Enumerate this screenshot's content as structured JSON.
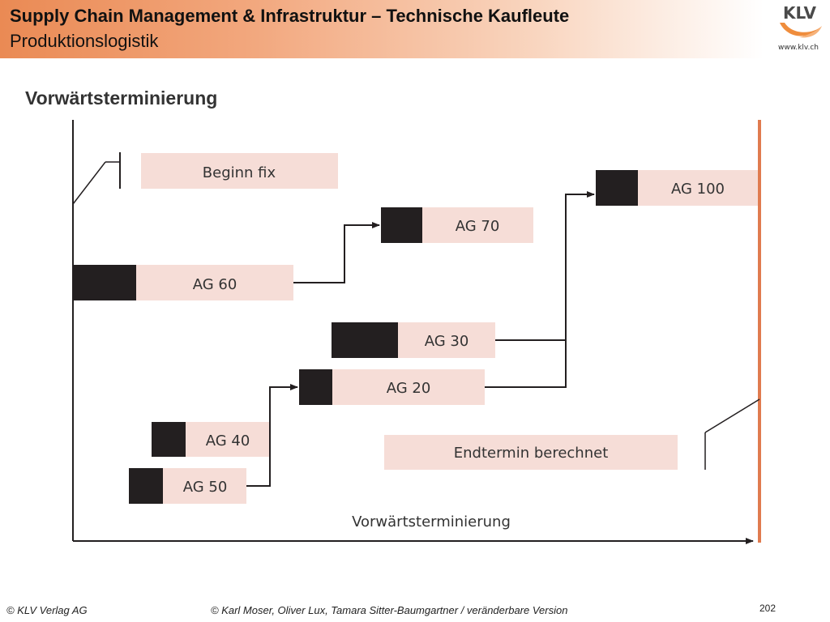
{
  "header": {
    "title": "Supply Chain Management & Infrastruktur – Technische Kaufleute",
    "subtitle": "Produktionslogistik",
    "logo_text": "KLV",
    "logo_url": "www.klv.ch"
  },
  "slide": {
    "title": "Vorwärtsterminierung"
  },
  "diagram": {
    "labels": {
      "start": "Beginn fix",
      "end": "Endtermin berechnet",
      "axis": "Vorwärtsterminierung"
    },
    "operations": [
      {
        "id": "ag60",
        "label": "AG 60"
      },
      {
        "id": "ag70",
        "label": "AG 70"
      },
      {
        "id": "ag100",
        "label": "AG 100"
      },
      {
        "id": "ag30",
        "label": "AG 30"
      },
      {
        "id": "ag20",
        "label": "AG 20"
      },
      {
        "id": "ag40",
        "label": "AG 40"
      },
      {
        "id": "ag50",
        "label": "AG 50"
      }
    ],
    "colors": {
      "box_fill": "#f6ddd7",
      "setup_fill": "#231f20",
      "line": "#231f20",
      "deadline_line": "#e07b4f"
    }
  },
  "footer": {
    "left": "© KLV Verlag AG",
    "center": "© Karl Moser, Oliver Lux, Tamara Sitter-Baumgartner / veränderbare Version",
    "page": "202"
  }
}
